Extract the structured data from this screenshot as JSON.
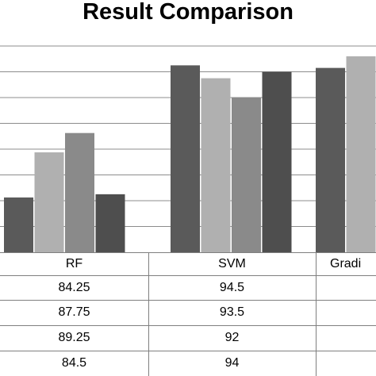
{
  "chart_data": {
    "type": "bar",
    "title": "Result Comparison",
    "categories": [
      "RF",
      "SVM",
      "Gradi"
    ],
    "series": [
      {
        "values": [
          84.25,
          94.5,
          null
        ]
      },
      {
        "values": [
          87.75,
          93.5,
          null
        ]
      },
      {
        "values": [
          89.25,
          92,
          null
        ]
      },
      {
        "values": [
          84.5,
          94,
          null
        ]
      }
    ],
    "estimated_values": {
      "Gradi": [
        94.3,
        95.2
      ]
    },
    "ylim": [
      80,
      96
    ],
    "grid": true,
    "colors": [
      "#5a5a5a",
      "#b0b0b0",
      "#8a8a8a",
      "#4e4e4e"
    ],
    "table": {
      "rows": [
        [
          "84.25",
          "94.5",
          ""
        ],
        [
          "87.75",
          "93.5",
          ""
        ],
        [
          "89.25",
          "92",
          ""
        ],
        [
          "84.5",
          "94",
          ""
        ]
      ]
    }
  }
}
